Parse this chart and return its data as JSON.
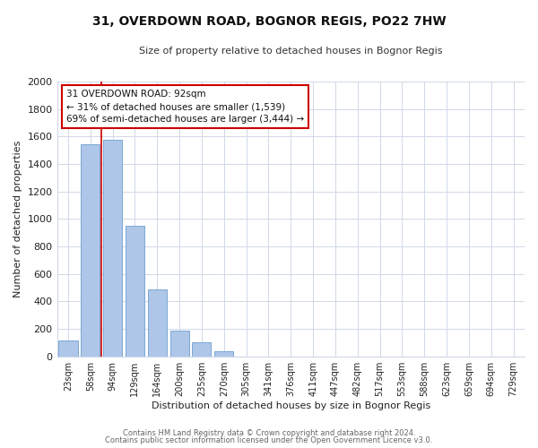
{
  "title": "31, OVERDOWN ROAD, BOGNOR REGIS, PO22 7HW",
  "subtitle": "Size of property relative to detached houses in Bognor Regis",
  "xlabel": "Distribution of detached houses by size in Bognor Regis",
  "ylabel": "Number of detached properties",
  "bar_labels": [
    "23sqm",
    "58sqm",
    "94sqm",
    "129sqm",
    "164sqm",
    "200sqm",
    "235sqm",
    "270sqm",
    "305sqm",
    "341sqm",
    "376sqm",
    "411sqm",
    "447sqm",
    "482sqm",
    "517sqm",
    "553sqm",
    "588sqm",
    "623sqm",
    "659sqm",
    "694sqm",
    "729sqm"
  ],
  "bar_values": [
    115,
    1545,
    1575,
    950,
    490,
    190,
    100,
    40,
    0,
    0,
    0,
    0,
    0,
    0,
    0,
    0,
    0,
    0,
    0,
    0,
    0
  ],
  "bar_color": "#aec6e8",
  "bar_edge_color": "#7aa8d4",
  "marker_index": 2,
  "marker_color": "#cc0000",
  "ylim": [
    0,
    2000
  ],
  "yticks": [
    0,
    200,
    400,
    600,
    800,
    1000,
    1200,
    1400,
    1600,
    1800,
    2000
  ],
  "annotation_title": "31 OVERDOWN ROAD: 92sqm",
  "annotation_line1": "← 31% of detached houses are smaller (1,539)",
  "annotation_line2": "69% of semi-detached houses are larger (3,444) →",
  "annotation_box_color": "#ffffff",
  "annotation_box_edge": "#cc0000",
  "footer_line1": "Contains HM Land Registry data © Crown copyright and database right 2024.",
  "footer_line2": "Contains public sector information licensed under the Open Government Licence v3.0.",
  "background_color": "#ffffff",
  "grid_color": "#d0d8e8"
}
